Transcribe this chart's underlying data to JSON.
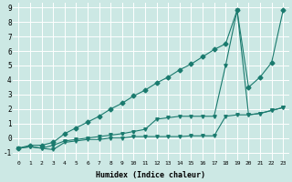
{
  "xlabel": "Humidex (Indice chaleur)",
  "background_color": "#cce8e4",
  "grid_color": "#ffffff",
  "line_color": "#1a7a6e",
  "xlim": [
    -0.5,
    23.5
  ],
  "ylim": [
    -1.5,
    9.3
  ],
  "xticks": [
    0,
    1,
    2,
    3,
    4,
    5,
    6,
    7,
    8,
    9,
    10,
    11,
    12,
    13,
    14,
    15,
    16,
    17,
    18,
    19,
    20,
    21,
    22,
    23
  ],
  "yticks": [
    -1,
    0,
    1,
    2,
    3,
    4,
    5,
    6,
    7,
    8,
    9
  ],
  "line1_x": [
    0,
    1,
    2,
    3,
    4,
    5,
    6,
    7,
    8,
    9,
    10,
    11,
    12,
    13,
    14,
    15,
    16,
    17,
    18,
    19,
    20,
    21,
    22,
    23
  ],
  "line1_y": [
    -0.7,
    -0.6,
    -0.7,
    -0.8,
    -0.3,
    -0.2,
    -0.1,
    -0.1,
    0.0,
    0.0,
    0.1,
    0.1,
    0.1,
    0.1,
    0.1,
    0.15,
    0.15,
    0.15,
    1.5,
    1.6,
    1.6,
    1.7,
    1.9,
    2.1
  ],
  "line2_x": [
    0,
    1,
    2,
    3,
    4,
    5,
    6,
    7,
    8,
    9,
    10,
    11,
    12,
    13,
    14,
    15,
    16,
    17,
    18,
    19,
    20,
    21,
    22,
    23
  ],
  "line2_y": [
    -0.7,
    -0.6,
    -0.7,
    -0.5,
    -0.2,
    -0.1,
    0.0,
    0.1,
    0.2,
    0.3,
    0.45,
    0.6,
    1.3,
    1.4,
    1.5,
    1.5,
    1.5,
    1.5,
    5.0,
    8.8,
    1.6,
    1.7,
    1.9,
    2.1
  ],
  "line3_x": [
    0,
    1,
    2,
    3,
    4,
    5,
    6,
    7,
    8,
    9,
    10,
    11,
    12,
    13,
    14,
    15,
    16,
    17,
    18,
    19,
    20,
    21,
    22,
    23
  ],
  "line3_y": [
    -0.7,
    -0.5,
    -0.5,
    -0.3,
    0.3,
    0.7,
    1.1,
    1.5,
    2.0,
    2.4,
    2.9,
    3.3,
    3.8,
    4.2,
    4.7,
    5.1,
    5.6,
    6.1,
    6.5,
    8.8,
    3.5,
    4.2,
    5.2,
    8.8
  ]
}
